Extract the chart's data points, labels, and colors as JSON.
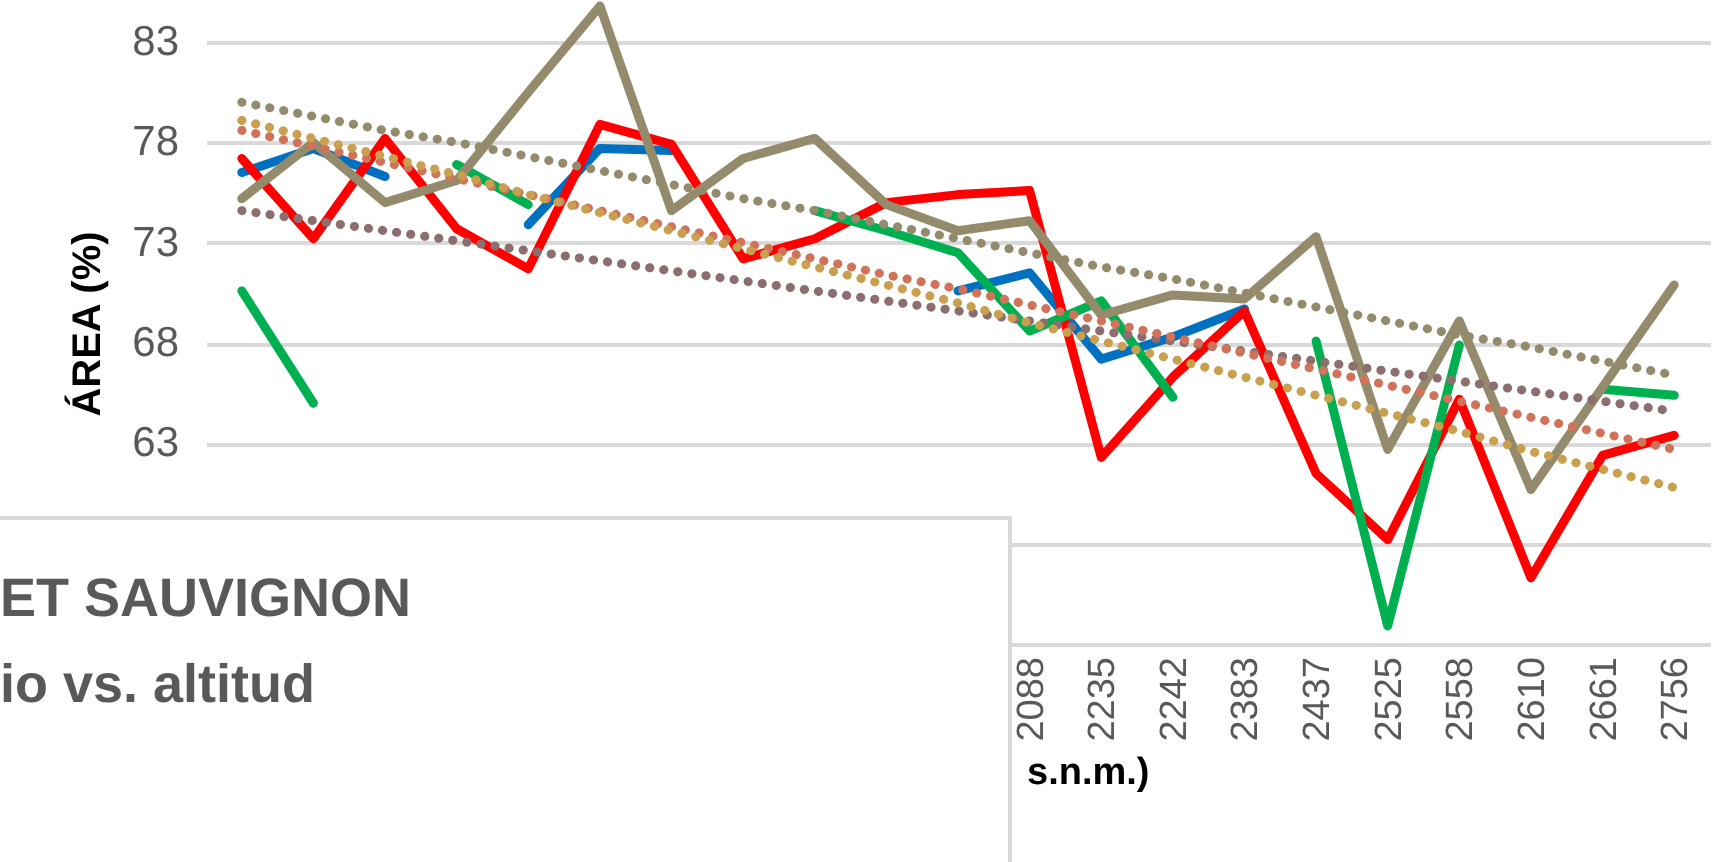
{
  "chart_data": {
    "type": "line",
    "title": "ET SAUVIGNON",
    "subtitle": "io vs. altitud",
    "xlabel": "s.n.m.)",
    "ylabel": "ÁREA (%)",
    "categories": [
      null,
      null,
      null,
      null,
      null,
      null,
      null,
      null,
      null,
      null,
      null,
      "2088",
      "2235",
      "2242",
      "2383",
      "2437",
      "2525",
      "2558",
      "2610",
      "2661",
      "2756"
    ],
    "ylim": [
      53,
      85
    ],
    "yticks": [
      {
        "value": 53,
        "label": null
      },
      {
        "value": 58,
        "label": null
      },
      63,
      68,
      73,
      78,
      83
    ],
    "grid": "y",
    "series": [
      {
        "color": "#0070c0",
        "values": [
          76.5,
          77.7,
          76.3,
          null,
          73.9,
          77.7,
          77.6,
          null,
          null,
          null,
          70.6,
          71.5,
          67.2,
          68.3,
          69.7,
          null,
          null,
          null,
          null,
          null,
          null
        ]
      },
      {
        "color": "#ff0000",
        "values": [
          77.2,
          73.2,
          78.2,
          73.7,
          71.7,
          78.9,
          77.9,
          72.2,
          73.2,
          75.0,
          75.4,
          75.6,
          62.3,
          66.3,
          69.6,
          61.5,
          58.2,
          65.2,
          56.3,
          62.4,
          63.4
        ]
      },
      {
        "color": "#00b050",
        "values": [
          70.6,
          65.0,
          null,
          76.9,
          74.9,
          null,
          null,
          null,
          74.6,
          73.6,
          72.5,
          68.6,
          70.1,
          65.3,
          null,
          68.1,
          53.9,
          67.9,
          null,
          65.7,
          65.4
        ]
      },
      {
        "color": "#948a6c",
        "values": [
          75.2,
          78.0,
          75.0,
          76.1,
          80.5,
          84.8,
          74.6,
          77.2,
          78.2,
          74.9,
          73.6,
          74.1,
          69.4,
          70.4,
          70.2,
          73.3,
          62.7,
          69.1,
          60.7,
          65.8,
          70.9
        ]
      },
      {
        "color": "#8c6e6e",
        "line_style": "dotted",
        "values": [
          74.6,
          74.1,
          73.6,
          73.1,
          72.6,
          72.1,
          71.6,
          71.1,
          70.6,
          70.1,
          69.6,
          69.1,
          68.6,
          68.1,
          67.6,
          67.1,
          66.6,
          66.1,
          65.6,
          65.1,
          64.6
        ]
      },
      {
        "color": "#d0735a",
        "line_style": "dotted",
        "values": [
          78.6,
          77.8,
          77.0,
          76.2,
          75.4,
          74.6,
          73.8,
          73.0,
          72.2,
          71.4,
          70.7,
          69.9,
          69.1,
          68.3,
          67.5,
          66.7,
          65.9,
          65.1,
          64.3,
          63.5,
          62.7
        ]
      },
      {
        "color": "#c9a050",
        "line_style": "dotted",
        "values": [
          79.1,
          78.2,
          77.3,
          76.4,
          75.4,
          74.5,
          73.6,
          72.7,
          71.8,
          70.9,
          70.0,
          69.0,
          68.1,
          67.2,
          66.3,
          65.4,
          64.5,
          63.6,
          62.6,
          61.7,
          60.8
        ]
      },
      {
        "color": "#948a6c",
        "line_style": "dotted",
        "values": [
          80.0,
          79.3,
          78.6,
          78.0,
          77.3,
          76.6,
          75.9,
          75.2,
          74.6,
          73.9,
          73.2,
          72.5,
          71.8,
          71.2,
          70.5,
          69.8,
          69.1,
          68.4,
          67.8,
          67.1,
          66.4
        ]
      }
    ]
  }
}
